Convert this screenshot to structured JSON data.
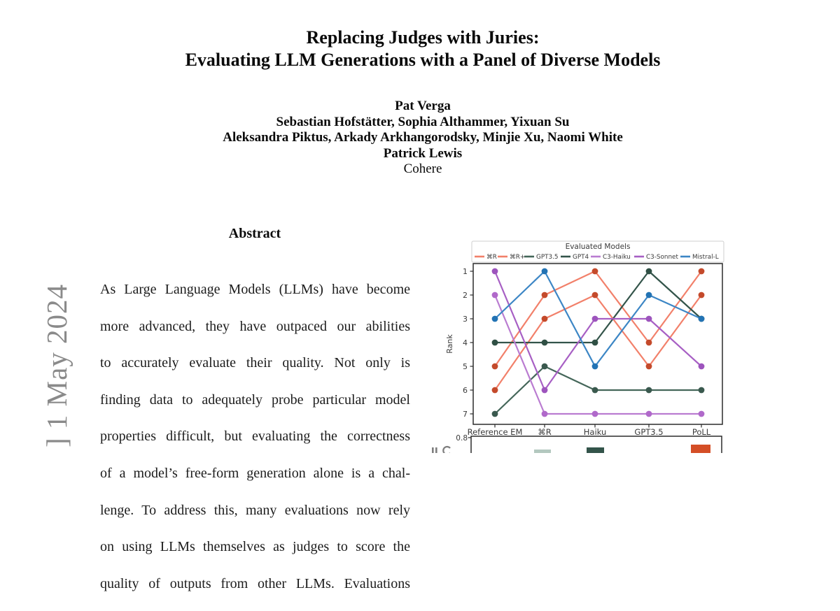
{
  "paper": {
    "title_line1": "Replacing Judges with Juries:",
    "title_line2": "Evaluating LLM Generations with a Panel of Diverse Models",
    "authors": [
      "Pat Verga",
      "Sebastian Hofstätter, Sophia Althammer, Yixuan Su",
      "Aleksandra Piktus, Arkady Arkhangorodsky, Minjie Xu, Naomi White",
      "Patrick Lewis"
    ],
    "affiliation": "Cohere",
    "sidebar_watermark_visible": "] 1 May 2024",
    "abstract_heading": "Abstract",
    "abstract_lines": [
      "As Large Language Models (LLMs) have become",
      "more advanced, they have outpaced our abilities",
      "to accurately evaluate their quality.  Not only is",
      "finding data to adequately probe particular model",
      "properties difficult, but evaluating the correctness",
      "of a model’s free-form generation alone is a chal-",
      "lenge. To address this, many evaluations now rely",
      "on using LLMs themselves as judges to score the",
      "quality of outputs from other LLMs. Evaluations"
    ]
  },
  "chart_data": [
    {
      "type": "line",
      "title": "Evaluated Models",
      "ylabel": "Rank",
      "y_inverted": true,
      "ylim": [
        1,
        7
      ],
      "yticks": [
        "1",
        "2",
        "3",
        "4",
        "5",
        "6",
        "7"
      ],
      "categories": [
        "Reference EM",
        "⌘R",
        "Haiku",
        "GPT3.5",
        "PoLL"
      ],
      "legend_position": "top",
      "grid": false,
      "series": [
        {
          "name": "⌘R",
          "color": "#f2806a",
          "marker_color": "#c44a2b",
          "values": [
            6,
            3,
            2,
            5,
            2
          ]
        },
        {
          "name": "⌘R+",
          "color": "#f2806a",
          "marker_color": "#c44a2b",
          "values": [
            5,
            2,
            1,
            4,
            1
          ]
        },
        {
          "name": "GPT3.5",
          "color": "#446659",
          "marker_color": "#3a594e",
          "values": [
            7,
            5,
            6,
            6,
            6
          ]
        },
        {
          "name": "GPT4",
          "color": "#33544a",
          "marker_color": "#2f4f44",
          "values": [
            4,
            4,
            4,
            1,
            3
          ]
        },
        {
          "name": "C3-Haiku",
          "color": "#ba7cd1",
          "marker_color": "#b069ca",
          "values": [
            2,
            7,
            7,
            7,
            7
          ]
        },
        {
          "name": "C3-Sonnet",
          "color": "#a75fc4",
          "marker_color": "#9d54bd",
          "values": [
            1,
            6,
            3,
            3,
            5
          ]
        },
        {
          "name": "Mistral-L",
          "color": "#3c86c5",
          "marker_color": "#2273b4",
          "values": [
            3,
            1,
            5,
            2,
            3
          ]
        }
      ]
    },
    {
      "type": "bar",
      "clipped": true,
      "ytick_visible": "0.8",
      "categories_aligned_with": [
        "Reference EM",
        "⌘R",
        "Haiku",
        "GPT3.5",
        "PoLL"
      ],
      "visible_bars": [
        {
          "category": "⌘R",
          "color": "#b3c8bf"
        },
        {
          "category": "Haiku",
          "color": "#33544a"
        },
        {
          "category": "PoLL",
          "color": "#d44e26"
        }
      ]
    }
  ]
}
